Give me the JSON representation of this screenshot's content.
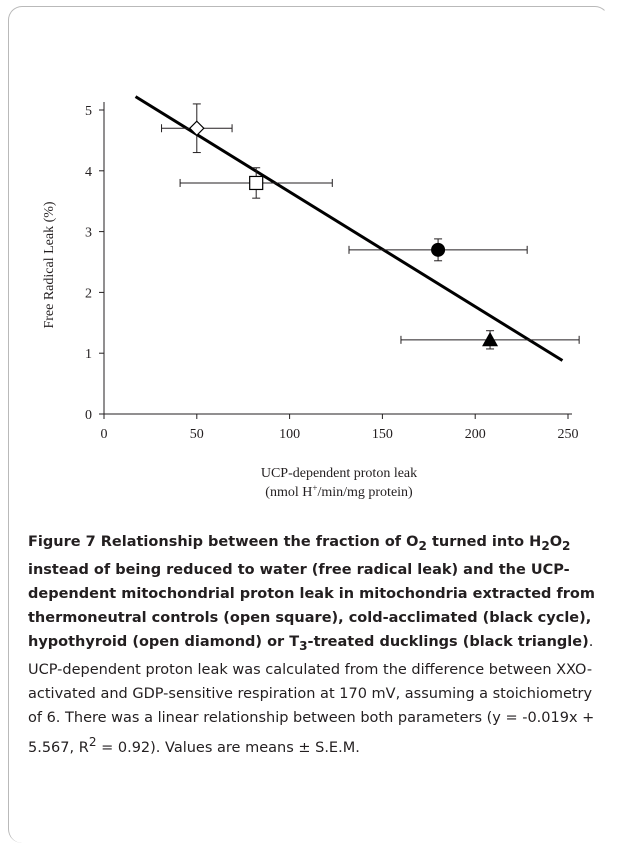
{
  "chart_data": {
    "type": "scatter",
    "ylabel": "Free Radical Leak (%)",
    "xlabel_line1": "UCP-dependent proton leak",
    "xlabel_line2_pre": "(nmol H",
    "xlabel_line2_sup": "+",
    "xlabel_line2_post": "/min/mg protein)",
    "xlim": [
      0,
      250
    ],
    "ylim": [
      0,
      5
    ],
    "xticks": [
      "0",
      "50",
      "100",
      "150",
      "200",
      "250"
    ],
    "yticks": [
      "0",
      "1",
      "2",
      "3",
      "4",
      "5"
    ],
    "grid": false,
    "points": [
      {
        "x": 50,
        "y": 4.7,
        "xerr": 19,
        "yerr": 0.4,
        "marker": "open diamond"
      },
      {
        "x": 82,
        "y": 3.8,
        "xerr": 41,
        "yerr": 0.25,
        "marker": "open square"
      },
      {
        "x": 180,
        "y": 2.7,
        "xerr": 48,
        "yerr": 0.18,
        "marker": "filled circle"
      },
      {
        "x": 208,
        "y": 1.22,
        "xerr": 48,
        "yerr": 0.15,
        "marker": "filled triangle"
      }
    ],
    "fit_line": {
      "x": [
        17,
        247
      ],
      "y": [
        5.22,
        0.88
      ]
    }
  },
  "caption": {
    "label": "Figure 7",
    "bold_1": " Relationship between the fraction of O",
    "bold_sub_1": "2",
    "bold_2": " turned into H",
    "bold_sub_2": "2",
    "bold_3": "O",
    "bold_sub_3": "2",
    "bold_4": " instead of being reduced to water (free radical leak) and the UCP-dependent mitochondrial proton leak in mitochondria extracted from thermoneutral controls (open square), cold-acclimated (black cycle), hypothyroid (open diamond) or T",
    "bold_sub_4": "3",
    "bold_5": "-treated ducklings (black triangle)",
    "body": ". UCP-dependent proton leak was calculated from the difference between XXO-activated and GDP-sensitive respiration at 170 mV, assuming a stoichiometry of 6. There was a linear relationship between both parameters (y = -0.019x + 5.567, R",
    "body_sup": "2",
    "body_end": " = 0.92). Values are means ± S.E.M."
  }
}
